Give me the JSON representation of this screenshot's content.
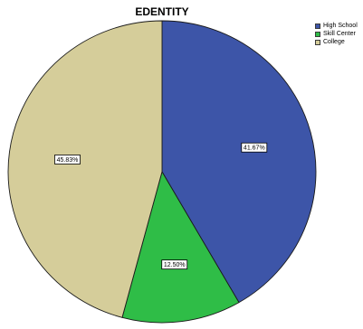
{
  "chart_data": {
    "type": "pie",
    "title": "EDENTITY",
    "legend_position": "top-right",
    "slices": [
      {
        "name": "High School",
        "value": 41.67,
        "label": "41.67%",
        "color": "#3d55a8"
      },
      {
        "name": "Skill Center",
        "value": 12.5,
        "label": "12.50%",
        "color": "#2fbd47"
      },
      {
        "name": "College",
        "value": 45.83,
        "label": "45.83%",
        "color": "#d5cd9a"
      }
    ]
  }
}
